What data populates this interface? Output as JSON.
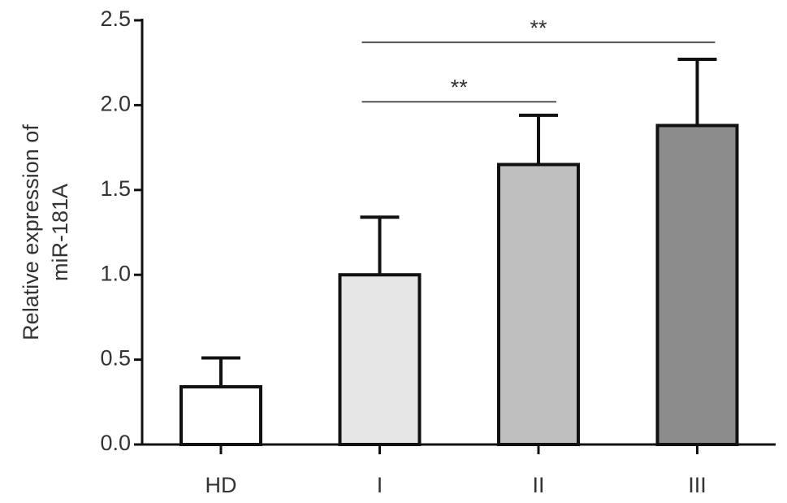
{
  "chart_data": {
    "type": "bar",
    "ylabel": [
      "Relative expression of",
      "miR-181A"
    ],
    "categories": [
      "HD",
      "I",
      "II",
      "III"
    ],
    "values": [
      0.34,
      1.0,
      1.65,
      1.88
    ],
    "errors": [
      0.17,
      0.34,
      0.29,
      0.39
    ],
    "colors": [
      "#ffffff",
      "#e6e6e6",
      "#bfbfbf",
      "#8c8c8c"
    ],
    "ylim": [
      0,
      2.5
    ],
    "yticks": [
      {
        "value": 0,
        "label": "0.0"
      },
      0.5,
      {
        "value": 1,
        "label": "1.0"
      },
      1.5,
      {
        "value": 2,
        "label": "2.0"
      },
      2.5
    ],
    "annotations": [
      {
        "text": "**",
        "from": "I",
        "to": "II",
        "y": 2.02
      },
      {
        "text": "**",
        "from": "I",
        "to": "III",
        "y": 2.37
      }
    ]
  }
}
